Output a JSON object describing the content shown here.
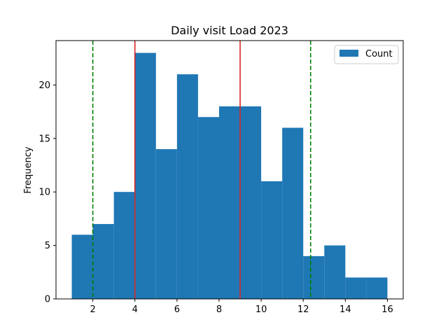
{
  "chart_data": {
    "type": "bar",
    "title": "Daily visit Load 2023",
    "xlabel": "",
    "ylabel": "Frequency",
    "xlim": [
      0.25,
      16.75
    ],
    "ylim": [
      0,
      24.15
    ],
    "x_ticks": [
      2,
      4,
      6,
      8,
      10,
      12,
      14,
      16
    ],
    "y_ticks": [
      0,
      5,
      10,
      15,
      20
    ],
    "bins": [
      {
        "start": 1,
        "end": 2,
        "value": 6
      },
      {
        "start": 2,
        "end": 3,
        "value": 7
      },
      {
        "start": 3,
        "end": 4,
        "value": 10
      },
      {
        "start": 4,
        "end": 5,
        "value": 23
      },
      {
        "start": 5,
        "end": 6,
        "value": 14
      },
      {
        "start": 6,
        "end": 7,
        "value": 21
      },
      {
        "start": 7,
        "end": 8,
        "value": 17
      },
      {
        "start": 8,
        "end": 9,
        "value": 18
      },
      {
        "start": 9,
        "end": 10,
        "value": 18
      },
      {
        "start": 10,
        "end": 11,
        "value": 11
      },
      {
        "start": 11,
        "end": 12,
        "value": 16
      },
      {
        "start": 12,
        "end": 13,
        "value": 4
      },
      {
        "start": 13,
        "end": 14,
        "value": 5
      },
      {
        "start": 14,
        "end": 15,
        "value": 2
      },
      {
        "start": 15,
        "end": 16,
        "value": 2
      }
    ],
    "vlines": [
      {
        "x": 2.0,
        "color": "#008000",
        "style": "dashed"
      },
      {
        "x": 4.0,
        "color": "#d62728",
        "style": "solid"
      },
      {
        "x": 9.0,
        "color": "#d62728",
        "style": "solid"
      },
      {
        "x": 12.35,
        "color": "#008000",
        "style": "dashed"
      }
    ],
    "series": [
      {
        "name": "Count",
        "color": "#1f77b4"
      }
    ],
    "legend": {
      "position": "top-right"
    },
    "grid": false
  }
}
